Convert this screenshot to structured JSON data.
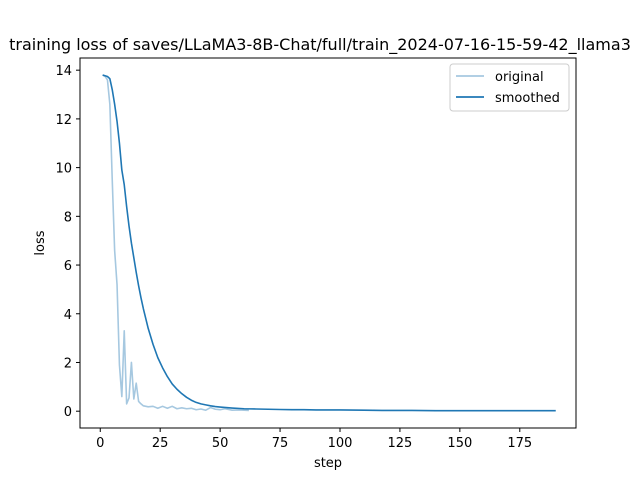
{
  "chart_data": {
    "type": "line",
    "title": "training loss of saves/LLaMA3-8B-Chat/full/train_2024-07-16-15-59-42_llama3",
    "xlabel": "step",
    "ylabel": "loss",
    "xlim": [
      -8.45,
      198.45
    ],
    "ylim": [
      -0.69,
      14.5
    ],
    "xticks": [
      0,
      25,
      50,
      75,
      100,
      125,
      150,
      175
    ],
    "yticks": [
      0,
      2,
      4,
      6,
      8,
      10,
      12,
      14
    ],
    "grid": false,
    "legend": "top-right",
    "series": [
      {
        "name": "original",
        "color": "#a6c8e0",
        "x": [
          1,
          2,
          3,
          4,
          5,
          6,
          7,
          8,
          9,
          10,
          11,
          12,
          13,
          14,
          15,
          16,
          17,
          18,
          19,
          20,
          22,
          24,
          26,
          28,
          30,
          32,
          34,
          36,
          38,
          40,
          42,
          44,
          46,
          48,
          50,
          52,
          55,
          58,
          62
        ],
        "y": [
          13.8,
          13.75,
          13.6,
          12.6,
          9.5,
          6.6,
          5.2,
          1.9,
          0.6,
          3.3,
          0.3,
          0.55,
          2.0,
          0.5,
          1.15,
          0.4,
          0.3,
          0.22,
          0.2,
          0.18,
          0.2,
          0.12,
          0.2,
          0.12,
          0.2,
          0.1,
          0.14,
          0.1,
          0.12,
          0.06,
          0.09,
          0.04,
          0.15,
          0.08,
          0.06,
          0.1,
          0.04,
          0.05,
          0.03
        ]
      },
      {
        "name": "smoothed",
        "color": "#1f77b4",
        "x": [
          1,
          2,
          3,
          4,
          5,
          6,
          7,
          8,
          9,
          10,
          11,
          12,
          13,
          14,
          15,
          16,
          17,
          18,
          19,
          20,
          22,
          24,
          26,
          28,
          30,
          32,
          34,
          36,
          38,
          40,
          42,
          44,
          46,
          48,
          50,
          55,
          60,
          65,
          70,
          75,
          80,
          85,
          90,
          95,
          100,
          110,
          120,
          130,
          140,
          150,
          160,
          170,
          180,
          190
        ],
        "y": [
          13.8,
          13.77,
          13.74,
          13.65,
          13.2,
          12.6,
          11.9,
          11.0,
          9.9,
          9.3,
          8.4,
          7.6,
          6.9,
          6.3,
          5.7,
          5.15,
          4.65,
          4.2,
          3.8,
          3.4,
          2.75,
          2.2,
          1.78,
          1.42,
          1.12,
          0.9,
          0.72,
          0.57,
          0.45,
          0.36,
          0.3,
          0.26,
          0.22,
          0.19,
          0.17,
          0.13,
          0.1,
          0.09,
          0.08,
          0.07,
          0.06,
          0.06,
          0.05,
          0.05,
          0.05,
          0.04,
          0.03,
          0.03,
          0.02,
          0.02,
          0.02,
          0.02,
          0.02,
          0.02
        ]
      }
    ]
  }
}
